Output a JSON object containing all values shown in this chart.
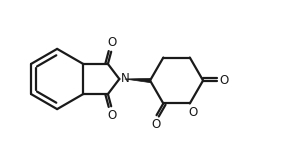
{
  "bg_color": "#ffffff",
  "line_color": "#1a1a1a",
  "line_width": 1.6,
  "text_color": "#1a1a1a",
  "font_size": 8.5,
  "figsize": [
    3.04,
    1.58
  ],
  "dpi": 100,
  "xlim": [
    0.0,
    10.0
  ],
  "ylim": [
    0.0,
    5.2
  ]
}
